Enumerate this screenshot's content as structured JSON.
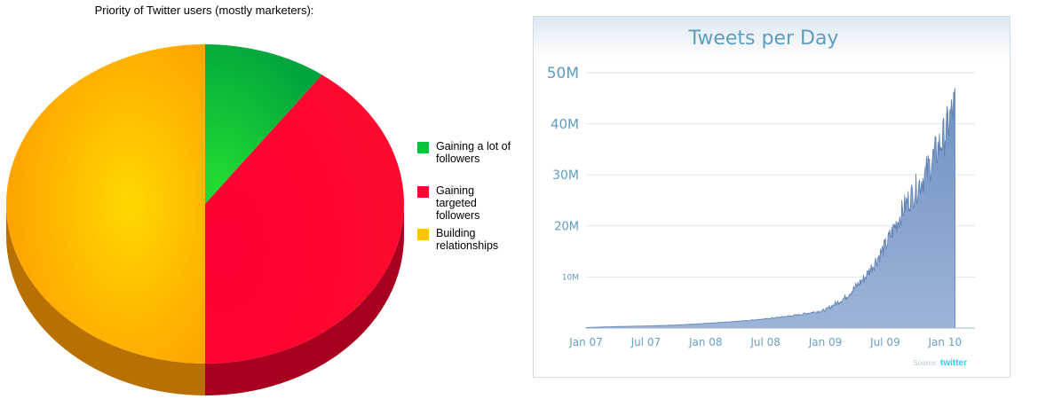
{
  "chart_data": [
    {
      "type": "pie",
      "title": "Priority of Twitter users (mostly marketers):",
      "categories": [
        "Gaining a lot of followers",
        "Gaining targeted followers",
        "Building relationships"
      ],
      "values": [
        10,
        40,
        50
      ],
      "colors": [
        "#09b43c",
        "#ff0033",
        "#ffb300"
      ],
      "legend_position": "right"
    },
    {
      "type": "area",
      "title": "Tweets per Day",
      "ylabel": "",
      "xlabel": "",
      "x_ticks": [
        "Jan 07",
        "Jul 07",
        "Jan 08",
        "Jul 08",
        "Jan 09",
        "Jul 09",
        "Jan 10"
      ],
      "y_ticks": [
        "10M",
        "20M",
        "30M",
        "40M",
        "50M"
      ],
      "ylim": [
        0,
        50
      ],
      "unit": "M",
      "grid": true,
      "color": "#7f9dc8",
      "source_label": "Source:",
      "source_brand": "twitter",
      "x": [
        "2007-01",
        "2007-04",
        "2007-07",
        "2007-10",
        "2008-01",
        "2008-04",
        "2008-07",
        "2008-10",
        "2009-01",
        "2009-03",
        "2009-05",
        "2009-07",
        "2009-09",
        "2009-11",
        "2010-01",
        "2010-02"
      ],
      "values": [
        0.1,
        0.3,
        0.4,
        0.6,
        0.9,
        1.3,
        1.8,
        2.5,
        3.5,
        6,
        10,
        16,
        24,
        30,
        38,
        44
      ]
    }
  ]
}
